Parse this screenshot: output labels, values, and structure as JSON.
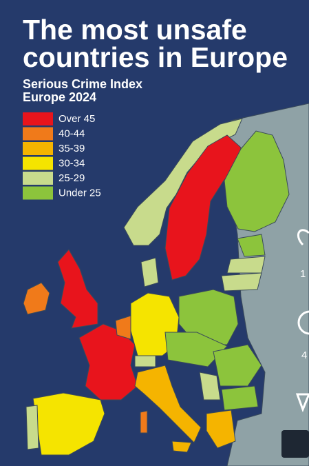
{
  "header": {
    "title_lines": [
      "The most unsafe",
      "countries in Europe"
    ],
    "subtitle_lines": [
      "Serious Crime Index",
      "Europe 2024"
    ]
  },
  "legend": {
    "entries": [
      {
        "label": "Over 45",
        "color": "#e8141c"
      },
      {
        "label": "40-44",
        "color": "#f07a1a"
      },
      {
        "label": "35-39",
        "color": "#f5b400"
      },
      {
        "label": "30-34",
        "color": "#f5e400"
      },
      {
        "label": "25-29",
        "color": "#c8db8c"
      },
      {
        "label": "Under 25",
        "color": "#8cc43c"
      }
    ]
  },
  "side_panel": {
    "counts": [
      "1",
      "4"
    ]
  }
}
